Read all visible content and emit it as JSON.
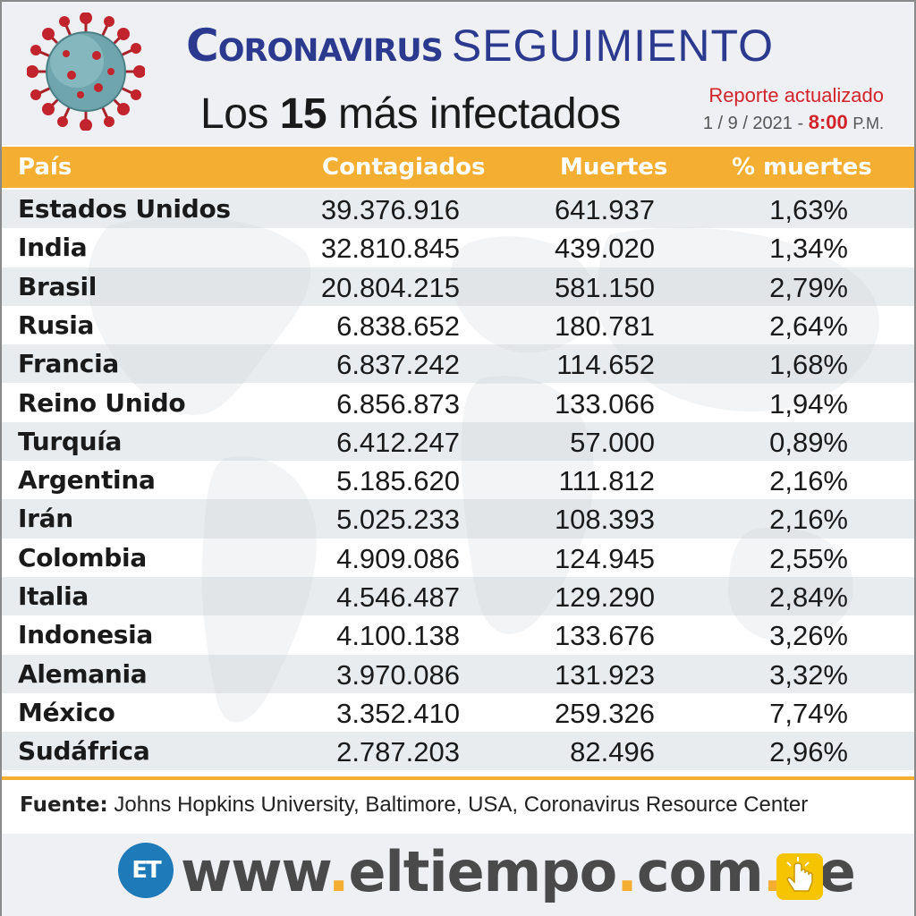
{
  "header": {
    "title_main": "Coronavirus",
    "title_sub": "SEGUIMIENTO",
    "subtitle_prefix": "Los",
    "subtitle_number": "15",
    "subtitle_suffix": "más infectados",
    "report_label": "Reporte actualizado",
    "report_date": "1 / 9 / 2021 -",
    "report_time": "8:00",
    "report_ampm": "P.M."
  },
  "table": {
    "columns": [
      "País",
      "Contagiados",
      "Muertes",
      "% muertes"
    ],
    "rows": [
      {
        "country": "Estados Unidos",
        "cases": "39.376.916",
        "deaths": "641.937",
        "pct": "1,63%"
      },
      {
        "country": "India",
        "cases": "32.810.845",
        "deaths": "439.020",
        "pct": "1,34%"
      },
      {
        "country": "Brasil",
        "cases": "20.804.215",
        "deaths": "581.150",
        "pct": "2,79%"
      },
      {
        "country": "Rusia",
        "cases": "6.838.652",
        "deaths": "180.781",
        "pct": "2,64%"
      },
      {
        "country": "Francia",
        "cases": "6.837.242",
        "deaths": "114.652",
        "pct": "1,68%"
      },
      {
        "country": "Reino Unido",
        "cases": "6.856.873",
        "deaths": "133.066",
        "pct": "1,94%"
      },
      {
        "country": "Turquía",
        "cases": "6.412.247",
        "deaths": "57.000",
        "pct": "0,89%"
      },
      {
        "country": "Argentina",
        "cases": "5.185.620",
        "deaths": "111.812",
        "pct": "2,16%"
      },
      {
        "country": "Irán",
        "cases": "5.025.233",
        "deaths": "108.393",
        "pct": "2,16%"
      },
      {
        "country": "Colombia",
        "cases": "4.909.086",
        "deaths": "124.945",
        "pct": "2,55%"
      },
      {
        "country": "Italia",
        "cases": "4.546.487",
        "deaths": "129.290",
        "pct": "2,84%"
      },
      {
        "country": "Indonesia",
        "cases": "4.100.138",
        "deaths": "133.676",
        "pct": "3,26%"
      },
      {
        "country": "Alemania",
        "cases": "3.970.086",
        "deaths": "131.923",
        "pct": "3,32%"
      },
      {
        "country": "México",
        "cases": "3.352.410",
        "deaths": "259.326",
        "pct": "7,74%"
      },
      {
        "country": "Sudáfrica",
        "cases": "2.787.203",
        "deaths": "82.496",
        "pct": "2,96%"
      }
    ]
  },
  "footer": {
    "source_label": "Fuente:",
    "source_text": "Johns Hopkins University, Baltimore, USA, Coronavirus Resource Center",
    "logo_text": "ET",
    "url_parts": [
      "www",
      ".",
      "eltiempo",
      ".",
      "com",
      ".",
      "ve"
    ]
  },
  "colors": {
    "accent": "#f4ae32",
    "title_blue": "#2b3a8f",
    "report_red": "#d2232a",
    "logo_blue": "#1e7ab8"
  },
  "icons": [
    "coronavirus-illustration",
    "click-hand-icon"
  ]
}
